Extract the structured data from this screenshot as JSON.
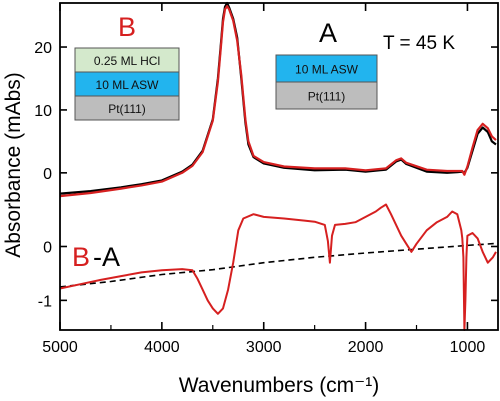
{
  "chart_data": [
    {
      "type": "line",
      "panel": "upper",
      "xlabel": "Wavenumbers (cm⁻¹)",
      "ylabel": "Absorbance (mAbs)",
      "xlim": [
        5000,
        700
      ],
      "ylim": [
        -4,
        27
      ],
      "yticks": [
        0,
        10,
        20
      ],
      "annotation": "T = 45 K",
      "series": [
        {
          "name": "A",
          "color": "#000000",
          "points": [
            [
              5000,
              -3.3
            ],
            [
              4700,
              -2.9
            ],
            [
              4400,
              -2.3
            ],
            [
              4200,
              -1.8
            ],
            [
              4000,
              -1.2
            ],
            [
              3800,
              0.2
            ],
            [
              3700,
              1.3
            ],
            [
              3600,
              3.5
            ],
            [
              3500,
              8.5
            ],
            [
              3450,
              15.0
            ],
            [
              3420,
              20.5
            ],
            [
              3400,
              24.5
            ],
            [
              3380,
              26.4
            ],
            [
              3360,
              27.0
            ],
            [
              3340,
              26.3
            ],
            [
              3300,
              24.5
            ],
            [
              3260,
              21.5
            ],
            [
              3220,
              15.0
            ],
            [
              3180,
              8.0
            ],
            [
              3150,
              4.5
            ],
            [
              3100,
              2.5
            ],
            [
              3000,
              1.5
            ],
            [
              2800,
              0.8
            ],
            [
              2500,
              0.4
            ],
            [
              2200,
              0.5
            ],
            [
              2000,
              0.2
            ],
            [
              1800,
              0.5
            ],
            [
              1700,
              1.8
            ],
            [
              1650,
              2.1
            ],
            [
              1600,
              1.4
            ],
            [
              1400,
              0.2
            ],
            [
              1200,
              0.0
            ],
            [
              1100,
              0.1
            ],
            [
              1050,
              0.2
            ],
            [
              1030,
              0.0
            ],
            [
              1000,
              0.8
            ],
            [
              950,
              3.5
            ],
            [
              900,
              6.2
            ],
            [
              850,
              7.2
            ],
            [
              800,
              6.5
            ],
            [
              760,
              5.0
            ],
            [
              720,
              4.5
            ]
          ]
        },
        {
          "name": "B",
          "color": "#d62020",
          "points": [
            [
              5000,
              -3.7
            ],
            [
              4700,
              -3.2
            ],
            [
              4400,
              -2.5
            ],
            [
              4200,
              -2.0
            ],
            [
              4000,
              -1.4
            ],
            [
              3800,
              0.0
            ],
            [
              3700,
              1.1
            ],
            [
              3600,
              3.3
            ],
            [
              3500,
              8.3
            ],
            [
              3450,
              14.5
            ],
            [
              3420,
              20.0
            ],
            [
              3400,
              24.0
            ],
            [
              3380,
              26.0
            ],
            [
              3360,
              26.5
            ],
            [
              3340,
              26.0
            ],
            [
              3300,
              24.2
            ],
            [
              3260,
              21.0
            ],
            [
              3220,
              15.5
            ],
            [
              3180,
              8.5
            ],
            [
              3150,
              5.0
            ],
            [
              3100,
              2.7
            ],
            [
              3000,
              1.7
            ],
            [
              2800,
              1.0
            ],
            [
              2500,
              0.7
            ],
            [
              2200,
              0.7
            ],
            [
              2000,
              0.4
            ],
            [
              1800,
              0.7
            ],
            [
              1700,
              2.0
            ],
            [
              1650,
              2.3
            ],
            [
              1600,
              1.6
            ],
            [
              1400,
              0.5
            ],
            [
              1200,
              0.3
            ],
            [
              1100,
              0.3
            ],
            [
              1050,
              0.3
            ],
            [
              1030,
              -0.3
            ],
            [
              1000,
              1.0
            ],
            [
              950,
              4.0
            ],
            [
              900,
              6.8
            ],
            [
              850,
              7.8
            ],
            [
              800,
              7.1
            ],
            [
              760,
              5.8
            ],
            [
              720,
              5.2
            ]
          ]
        }
      ],
      "inset_B": {
        "label": "B",
        "layers": [
          "0.25 ML HCl",
          "10 ML ASW",
          "Pt(111)"
        ]
      },
      "inset_A": {
        "label": "A",
        "layers": [
          "10 ML ASW",
          "Pt(111)"
        ]
      }
    },
    {
      "type": "line",
      "panel": "lower",
      "xlim": [
        5000,
        700
      ],
      "ylim": [
        -1.55,
        0.9
      ],
      "yticks": [
        -1,
        0
      ],
      "xticks": [
        5000,
        4000,
        3000,
        2000,
        1000
      ],
      "label_B": "B",
      "label_A": "-A",
      "series": [
        {
          "name": "B-A",
          "color": "#d62020",
          "points": [
            [
              5000,
              -0.78
            ],
            [
              4800,
              -0.7
            ],
            [
              4600,
              -0.62
            ],
            [
              4400,
              -0.55
            ],
            [
              4200,
              -0.48
            ],
            [
              4000,
              -0.44
            ],
            [
              3800,
              -0.42
            ],
            [
              3700,
              -0.44
            ],
            [
              3650,
              -0.6
            ],
            [
              3600,
              -0.8
            ],
            [
              3550,
              -1.0
            ],
            [
              3500,
              -1.15
            ],
            [
              3450,
              -1.25
            ],
            [
              3400,
              -1.15
            ],
            [
              3350,
              -0.8
            ],
            [
              3300,
              -0.3
            ],
            [
              3250,
              0.3
            ],
            [
              3200,
              0.52
            ],
            [
              3100,
              0.6
            ],
            [
              3000,
              0.55
            ],
            [
              2800,
              0.52
            ],
            [
              2600,
              0.48
            ],
            [
              2500,
              0.46
            ],
            [
              2400,
              0.4
            ],
            [
              2370,
              0.1
            ],
            [
              2350,
              -0.3
            ],
            [
              2330,
              0.2
            ],
            [
              2300,
              0.4
            ],
            [
              2200,
              0.42
            ],
            [
              2100,
              0.45
            ],
            [
              2000,
              0.55
            ],
            [
              1900,
              0.65
            ],
            [
              1850,
              0.72
            ],
            [
              1800,
              0.78
            ],
            [
              1750,
              0.6
            ],
            [
              1700,
              0.4
            ],
            [
              1650,
              0.2
            ],
            [
              1600,
              0.05
            ],
            [
              1550,
              -0.1
            ],
            [
              1500,
              0.05
            ],
            [
              1400,
              0.3
            ],
            [
              1300,
              0.45
            ],
            [
              1200,
              0.55
            ],
            [
              1150,
              0.65
            ],
            [
              1100,
              0.6
            ],
            [
              1080,
              0.45
            ],
            [
              1060,
              0.3
            ],
            [
              1050,
              0.15
            ],
            [
              1040,
              -0.2
            ],
            [
              1030,
              -1.55
            ],
            [
              1020,
              -1.0
            ],
            [
              1010,
              -0.2
            ],
            [
              1000,
              0.2
            ],
            [
              950,
              0.25
            ],
            [
              900,
              0.15
            ],
            [
              850,
              -0.1
            ],
            [
              800,
              -0.3
            ],
            [
              750,
              -0.2
            ],
            [
              720,
              -0.1
            ]
          ]
        },
        {
          "name": "baseline",
          "color": "#000000",
          "dashed": true,
          "points": [
            [
              5000,
              -0.75
            ],
            [
              4500,
              -0.65
            ],
            [
              4000,
              -0.52
            ],
            [
              3500,
              -0.43
            ],
            [
              3000,
              -0.3
            ],
            [
              2500,
              -0.2
            ],
            [
              2000,
              -0.12
            ],
            [
              1500,
              -0.05
            ],
            [
              1000,
              0.02
            ],
            [
              700,
              0.06
            ]
          ]
        }
      ]
    }
  ]
}
